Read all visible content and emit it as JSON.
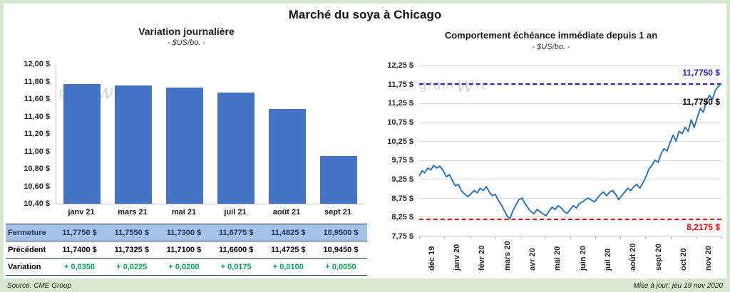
{
  "page": {
    "title": "Marché du soya à Chicago",
    "source": "Source: CME Group",
    "updated": "Mise à jour: jeu 19 nov 2020",
    "watermark": {
      "pre": "grain",
      "w": "w",
      "post": "iz"
    }
  },
  "colors": {
    "bar": "#4472C4",
    "line": "#2E75B6",
    "ref_high": "#2222CC",
    "ref_low": "#FF0000",
    "variation_green": "#00A651",
    "fermeture_bg": "#A6C2E7",
    "fermeture_text": "#17375E"
  },
  "left_chart": {
    "title": "Variation journalière",
    "subtitle": "- $US/bo. -",
    "y_ticks": [
      "12,00 $",
      "11,80 $",
      "11,60 $",
      "11,40 $",
      "11,20 $",
      "11,00 $",
      "10,80 $",
      "10,60 $",
      "10,40 $"
    ],
    "categories": [
      "janv 21",
      "mars 21",
      "mai 21",
      "juil 21",
      "août 21",
      "sept 21"
    ],
    "table": {
      "rows": [
        {
          "key": "fermeture",
          "label": "Fermeture",
          "values": [
            "11,7750 $",
            "11,7550 $",
            "11,7300 $",
            "11,6775 $",
            "11,4825 $",
            "10,9500 $"
          ]
        },
        {
          "key": "precedent",
          "label": "Précédent",
          "values": [
            "11,7400 $",
            "11,7325 $",
            "11,7100 $",
            "11,6600 $",
            "11,4725 $",
            "10,9450 $"
          ]
        },
        {
          "key": "variation",
          "label": "Variation",
          "values": [
            "+ 0,0350",
            "+ 0,0225",
            "+ 0,0200",
            "+ 0,0175",
            "+ 0,0100",
            "+ 0,0050"
          ]
        }
      ]
    }
  },
  "right_chart": {
    "title": "Comportement échéance immédiate depuis 1 an",
    "subtitle": "- $US/bo. -",
    "y_ticks": [
      "12,25 $",
      "11,75 $",
      "11,25 $",
      "10,75 $",
      "10,25 $",
      "9,75 $",
      "9,25 $",
      "8,75 $",
      "8,25 $",
      "7,75 $"
    ],
    "x_ticks": [
      "déc 19",
      "janv 20",
      "févr 20",
      "mars 20",
      "avr 20",
      "mai 20",
      "juin 20",
      "juil 20",
      "août 20",
      "sept 20",
      "oct 20",
      "nov 20"
    ],
    "high_label": "11,7750 $",
    "last_label": "11,7750 $",
    "low_label": "8,2175 $"
  },
  "chart_data": [
    {
      "type": "bar",
      "title": "Variation journalière",
      "subtitle": "- $US/bo. -",
      "categories": [
        "janv 21",
        "mars 21",
        "mai 21",
        "juil 21",
        "août 21",
        "sept 21"
      ],
      "values": [
        11.775,
        11.755,
        11.73,
        11.6775,
        11.4825,
        10.95
      ],
      "previous_values": [
        11.74,
        11.7325,
        11.71,
        11.66,
        11.4725,
        10.945
      ],
      "variations": [
        0.035,
        0.0225,
        0.02,
        0.0175,
        0.01,
        0.005
      ],
      "ylabel": "$US/bo.",
      "ylim": [
        10.4,
        12.0
      ],
      "grid": false
    },
    {
      "type": "line",
      "title": "Comportement échéance immédiate depuis 1 an",
      "subtitle": "- $US/bo. -",
      "x_range_months": [
        "déc 19",
        "nov 20"
      ],
      "ylim": [
        7.75,
        12.25
      ],
      "grid": true,
      "ref_lines": [
        {
          "value": 11.775,
          "color": "#2222CC",
          "style": "dashed",
          "label": "11,7750 $"
        },
        {
          "value": 8.2175,
          "color": "#FF0000",
          "style": "dashed",
          "label": "8,2175 $"
        }
      ],
      "points": [
        [
          0.0,
          9.35
        ],
        [
          0.01,
          9.48
        ],
        [
          0.018,
          9.42
        ],
        [
          0.028,
          9.55
        ],
        [
          0.038,
          9.5
        ],
        [
          0.048,
          9.62
        ],
        [
          0.058,
          9.55
        ],
        [
          0.068,
          9.6
        ],
        [
          0.078,
          9.5
        ],
        [
          0.09,
          9.32
        ],
        [
          0.1,
          9.38
        ],
        [
          0.11,
          9.22
        ],
        [
          0.12,
          9.08
        ],
        [
          0.13,
          9.12
        ],
        [
          0.14,
          8.95
        ],
        [
          0.152,
          8.85
        ],
        [
          0.162,
          8.8
        ],
        [
          0.172,
          8.88
        ],
        [
          0.182,
          8.96
        ],
        [
          0.192,
          8.9
        ],
        [
          0.202,
          9.02
        ],
        [
          0.212,
          8.96
        ],
        [
          0.222,
          9.06
        ],
        [
          0.232,
          8.92
        ],
        [
          0.242,
          8.82
        ],
        [
          0.252,
          8.86
        ],
        [
          0.262,
          8.7
        ],
        [
          0.272,
          8.58
        ],
        [
          0.282,
          8.42
        ],
        [
          0.292,
          8.28
        ],
        [
          0.3,
          8.2175
        ],
        [
          0.31,
          8.42
        ],
        [
          0.32,
          8.58
        ],
        [
          0.33,
          8.72
        ],
        [
          0.34,
          8.76
        ],
        [
          0.35,
          8.62
        ],
        [
          0.36,
          8.5
        ],
        [
          0.37,
          8.4
        ],
        [
          0.38,
          8.35
        ],
        [
          0.39,
          8.46
        ],
        [
          0.4,
          8.4
        ],
        [
          0.41,
          8.34
        ],
        [
          0.42,
          8.3
        ],
        [
          0.43,
          8.42
        ],
        [
          0.44,
          8.52
        ],
        [
          0.45,
          8.46
        ],
        [
          0.46,
          8.56
        ],
        [
          0.47,
          8.5
        ],
        [
          0.48,
          8.4
        ],
        [
          0.49,
          8.36
        ],
        [
          0.5,
          8.46
        ],
        [
          0.51,
          8.56
        ],
        [
          0.52,
          8.5
        ],
        [
          0.53,
          8.62
        ],
        [
          0.54,
          8.66
        ],
        [
          0.55,
          8.72
        ],
        [
          0.56,
          8.76
        ],
        [
          0.57,
          8.7
        ],
        [
          0.58,
          8.66
        ],
        [
          0.59,
          8.76
        ],
        [
          0.6,
          8.86
        ],
        [
          0.61,
          8.92
        ],
        [
          0.62,
          8.82
        ],
        [
          0.63,
          8.92
        ],
        [
          0.64,
          8.96
        ],
        [
          0.65,
          8.86
        ],
        [
          0.66,
          8.72
        ],
        [
          0.67,
          8.82
        ],
        [
          0.68,
          8.92
        ],
        [
          0.69,
          9.02
        ],
        [
          0.7,
          8.96
        ],
        [
          0.71,
          9.06
        ],
        [
          0.72,
          9.12
        ],
        [
          0.73,
          9.02
        ],
        [
          0.74,
          9.16
        ],
        [
          0.75,
          9.32
        ],
        [
          0.76,
          9.52
        ],
        [
          0.77,
          9.62
        ],
        [
          0.78,
          9.76
        ],
        [
          0.79,
          9.7
        ],
        [
          0.8,
          9.92
        ],
        [
          0.81,
          10.06
        ],
        [
          0.82,
          10.0
        ],
        [
          0.83,
          10.22
        ],
        [
          0.84,
          10.42
        ],
        [
          0.85,
          10.26
        ],
        [
          0.86,
          10.52
        ],
        [
          0.87,
          10.46
        ],
        [
          0.88,
          10.62
        ],
        [
          0.89,
          10.52
        ],
        [
          0.9,
          10.82
        ],
        [
          0.91,
          10.62
        ],
        [
          0.92,
          10.88
        ],
        [
          0.93,
          11.12
        ],
        [
          0.94,
          11.02
        ],
        [
          0.95,
          11.32
        ],
        [
          0.96,
          11.46
        ],
        [
          0.97,
          11.36
        ],
        [
          0.98,
          11.6
        ],
        [
          0.99,
          11.7
        ],
        [
          1.0,
          11.775
        ]
      ]
    }
  ]
}
